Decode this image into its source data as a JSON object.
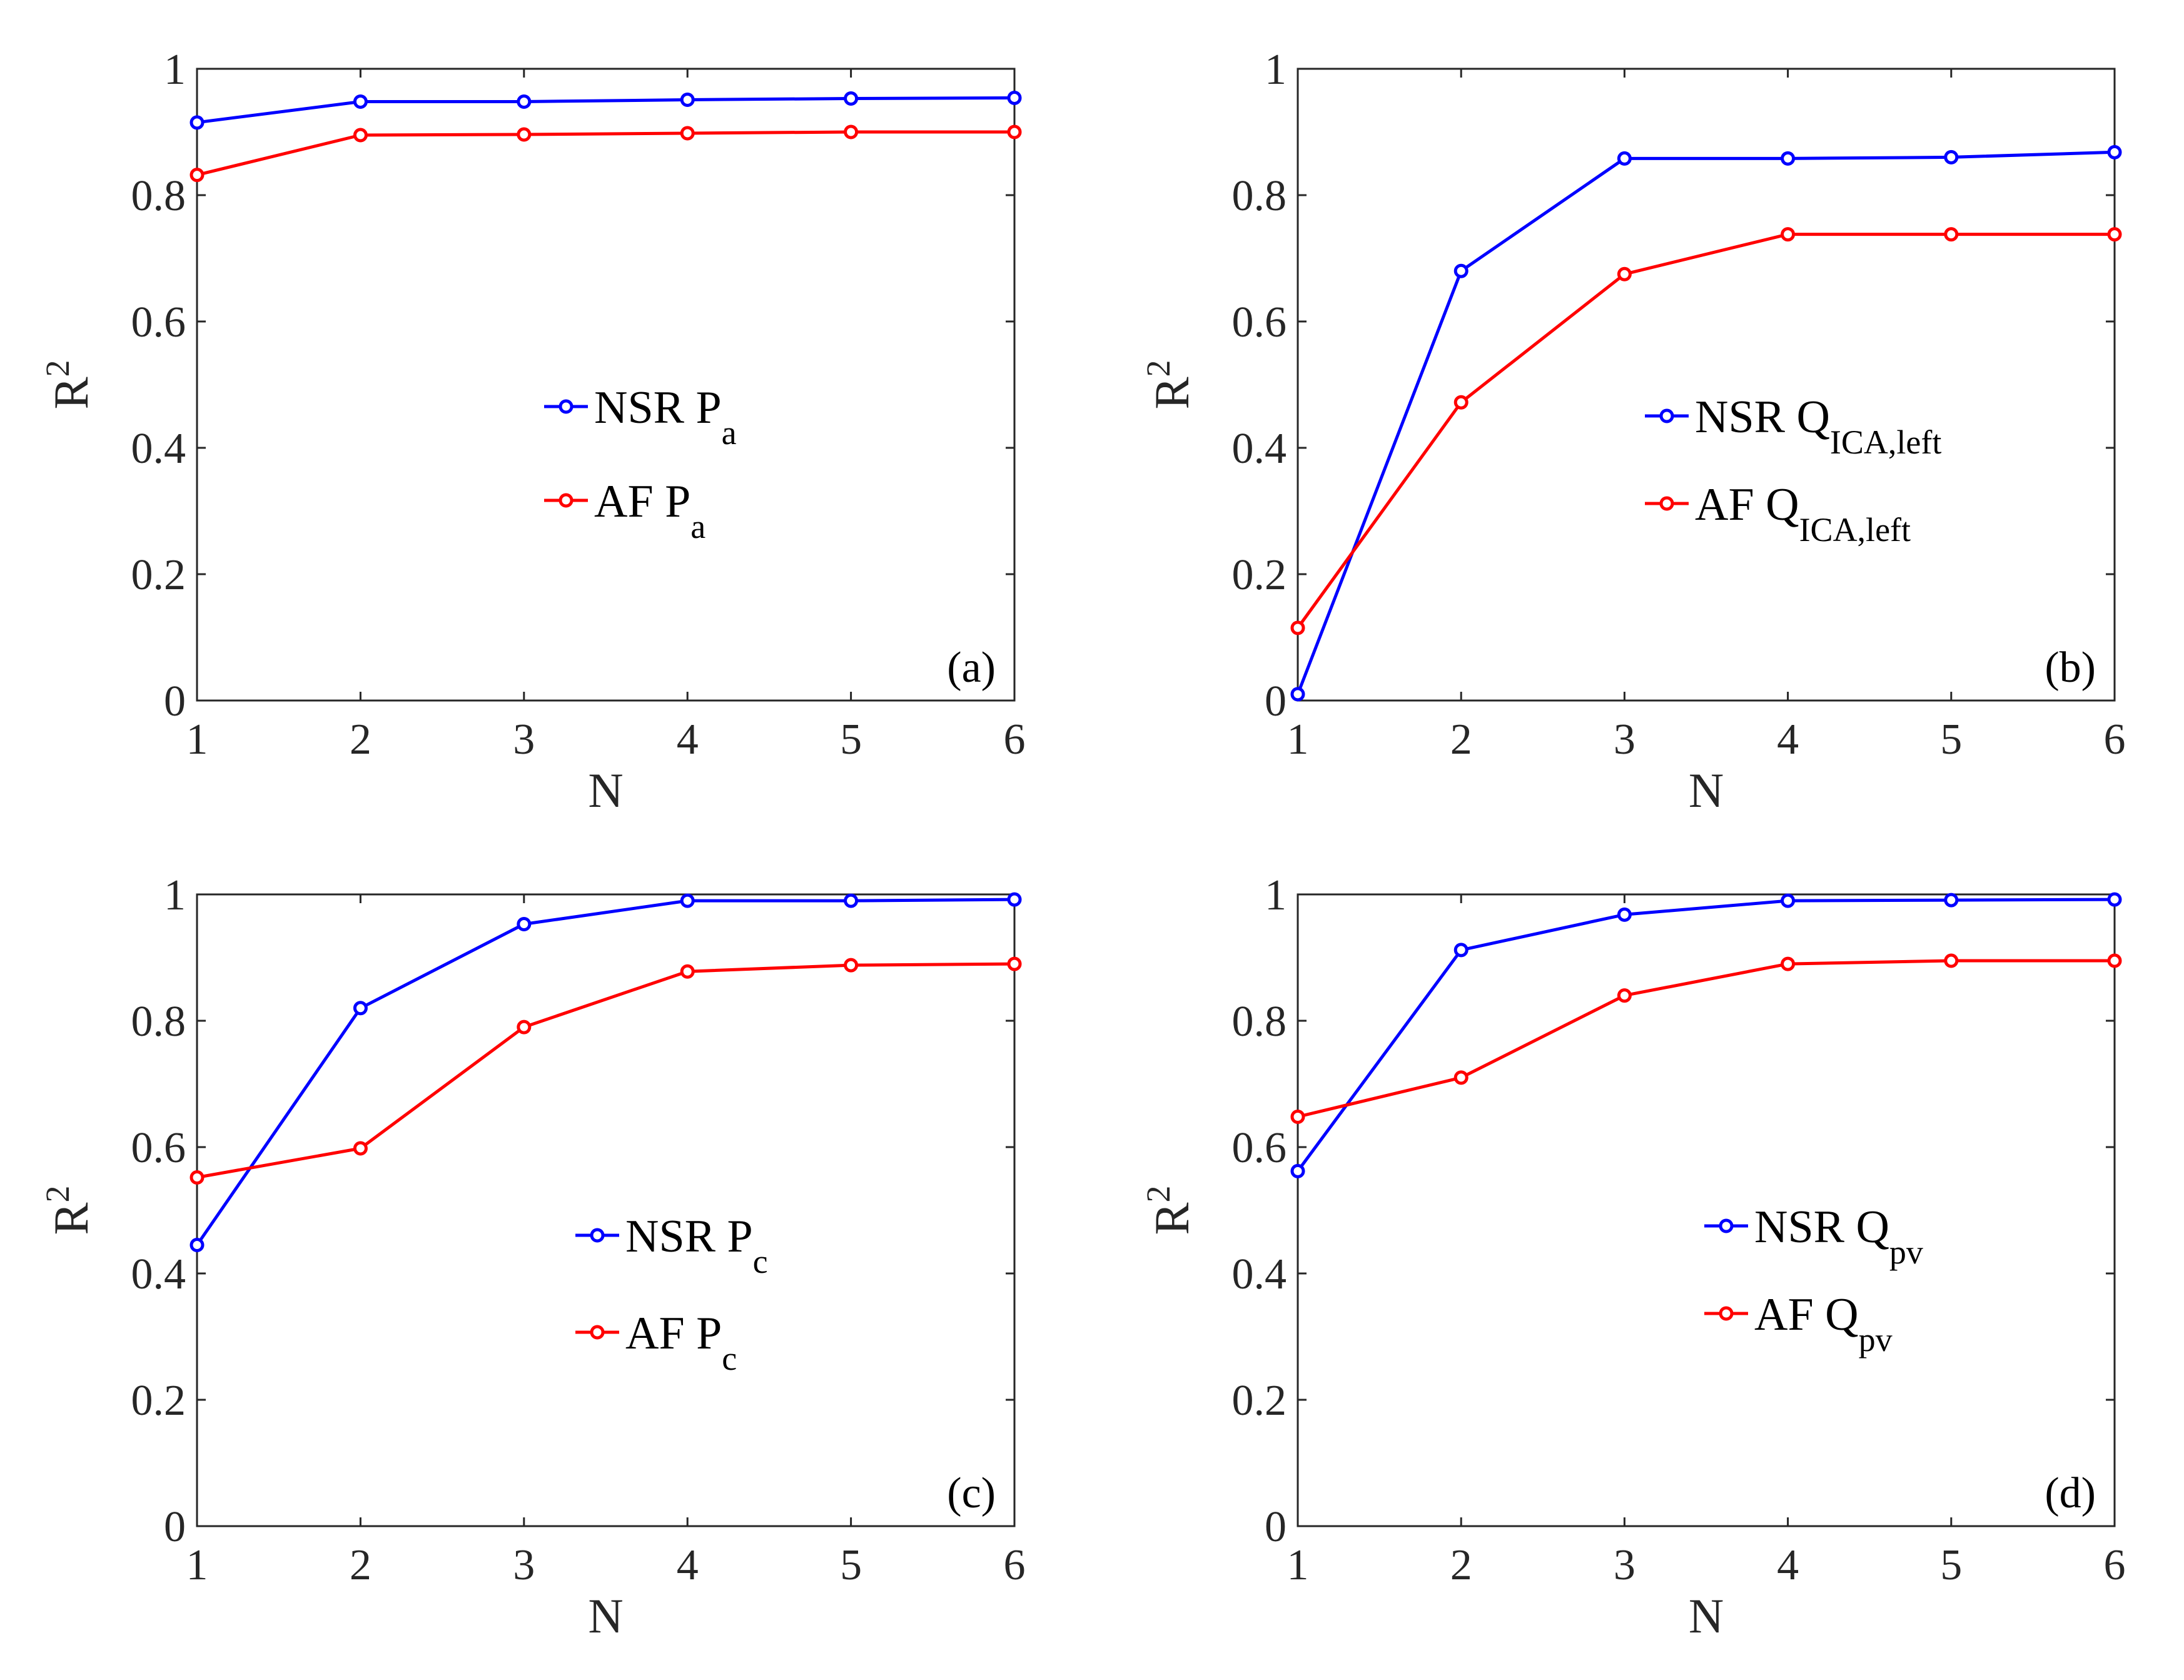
{
  "colors": {
    "nsr": "#0000ff",
    "af": "#ff0000",
    "axis": "#262626"
  },
  "chart_data": [
    {
      "type": "line",
      "panel_label": "(a)",
      "xlabel": "N",
      "ylabel": {
        "base": "R",
        "sup": "2"
      },
      "xlim": [
        1,
        6
      ],
      "ylim": [
        0,
        1
      ],
      "x": [
        1,
        2,
        3,
        4,
        5,
        6
      ],
      "xticks": [
        "1",
        "2",
        "3",
        "4",
        "5",
        "6"
      ],
      "yticks": [
        "0",
        "0.2",
        "0.4",
        "0.6",
        "0.8",
        "1"
      ],
      "legend_position": "center",
      "series": [
        {
          "name": "NSR",
          "var": "P",
          "sub": "a",
          "color": "#0000ff",
          "values": [
            0.915,
            0.948,
            0.948,
            0.951,
            0.953,
            0.954
          ]
        },
        {
          "name": "AF",
          "var": "P",
          "sub": "a",
          "color": "#ff0000",
          "values": [
            0.832,
            0.895,
            0.896,
            0.898,
            0.9,
            0.9
          ]
        }
      ]
    },
    {
      "type": "line",
      "panel_label": "(b)",
      "xlabel": "N",
      "ylabel": {
        "base": "R",
        "sup": "2"
      },
      "xlim": [
        1,
        6
      ],
      "ylim": [
        0,
        1
      ],
      "x": [
        1,
        2,
        3,
        4,
        5,
        6
      ],
      "xticks": [
        "1",
        "2",
        "3",
        "4",
        "5",
        "6"
      ],
      "yticks": [
        "0",
        "0.2",
        "0.4",
        "0.6",
        "0.8",
        "1"
      ],
      "legend_position": "center-right",
      "series": [
        {
          "name": "NSR",
          "var": "Q",
          "sub": "ICA,left",
          "color": "#0000ff",
          "values": [
            0.01,
            0.68,
            0.858,
            0.858,
            0.86,
            0.868
          ]
        },
        {
          "name": "AF",
          "var": "Q",
          "sub": "ICA,left",
          "color": "#ff0000",
          "values": [
            0.115,
            0.472,
            0.675,
            0.738,
            0.738,
            0.738
          ]
        }
      ]
    },
    {
      "type": "line",
      "panel_label": "(c)",
      "xlabel": "N",
      "ylabel": {
        "base": "R",
        "sup": "2"
      },
      "xlim": [
        1,
        6
      ],
      "ylim": [
        0,
        1
      ],
      "x": [
        1,
        2,
        3,
        4,
        5,
        6
      ],
      "xticks": [
        "1",
        "2",
        "3",
        "4",
        "5",
        "6"
      ],
      "yticks": [
        "0",
        "0.2",
        "0.4",
        "0.6",
        "0.8",
        "1"
      ],
      "legend_position": "center",
      "series": [
        {
          "name": "NSR",
          "var": "P",
          "sub": "c",
          "color": "#0000ff",
          "values": [
            0.445,
            0.82,
            0.953,
            0.99,
            0.99,
            0.992
          ]
        },
        {
          "name": "AF",
          "var": "P",
          "sub": "c",
          "color": "#ff0000",
          "values": [
            0.552,
            0.598,
            0.79,
            0.878,
            0.888,
            0.89
          ]
        }
      ]
    },
    {
      "type": "line",
      "panel_label": "(d)",
      "xlabel": "N",
      "ylabel": {
        "base": "R",
        "sup": "2"
      },
      "xlim": [
        1,
        6
      ],
      "ylim": [
        0,
        1
      ],
      "x": [
        1,
        2,
        3,
        4,
        5,
        6
      ],
      "xticks": [
        "1",
        "2",
        "3",
        "4",
        "5",
        "6"
      ],
      "yticks": [
        "0",
        "0.2",
        "0.4",
        "0.6",
        "0.8",
        "1"
      ],
      "legend_position": "center-right",
      "series": [
        {
          "name": "NSR",
          "var": "Q",
          "sub": "pv",
          "color": "#0000ff",
          "values": [
            0.562,
            0.912,
            0.968,
            0.99,
            0.991,
            0.992
          ]
        },
        {
          "name": "AF",
          "var": "Q",
          "sub": "pv",
          "color": "#ff0000",
          "values": [
            0.648,
            0.71,
            0.84,
            0.89,
            0.895,
            0.895
          ]
        }
      ]
    }
  ]
}
